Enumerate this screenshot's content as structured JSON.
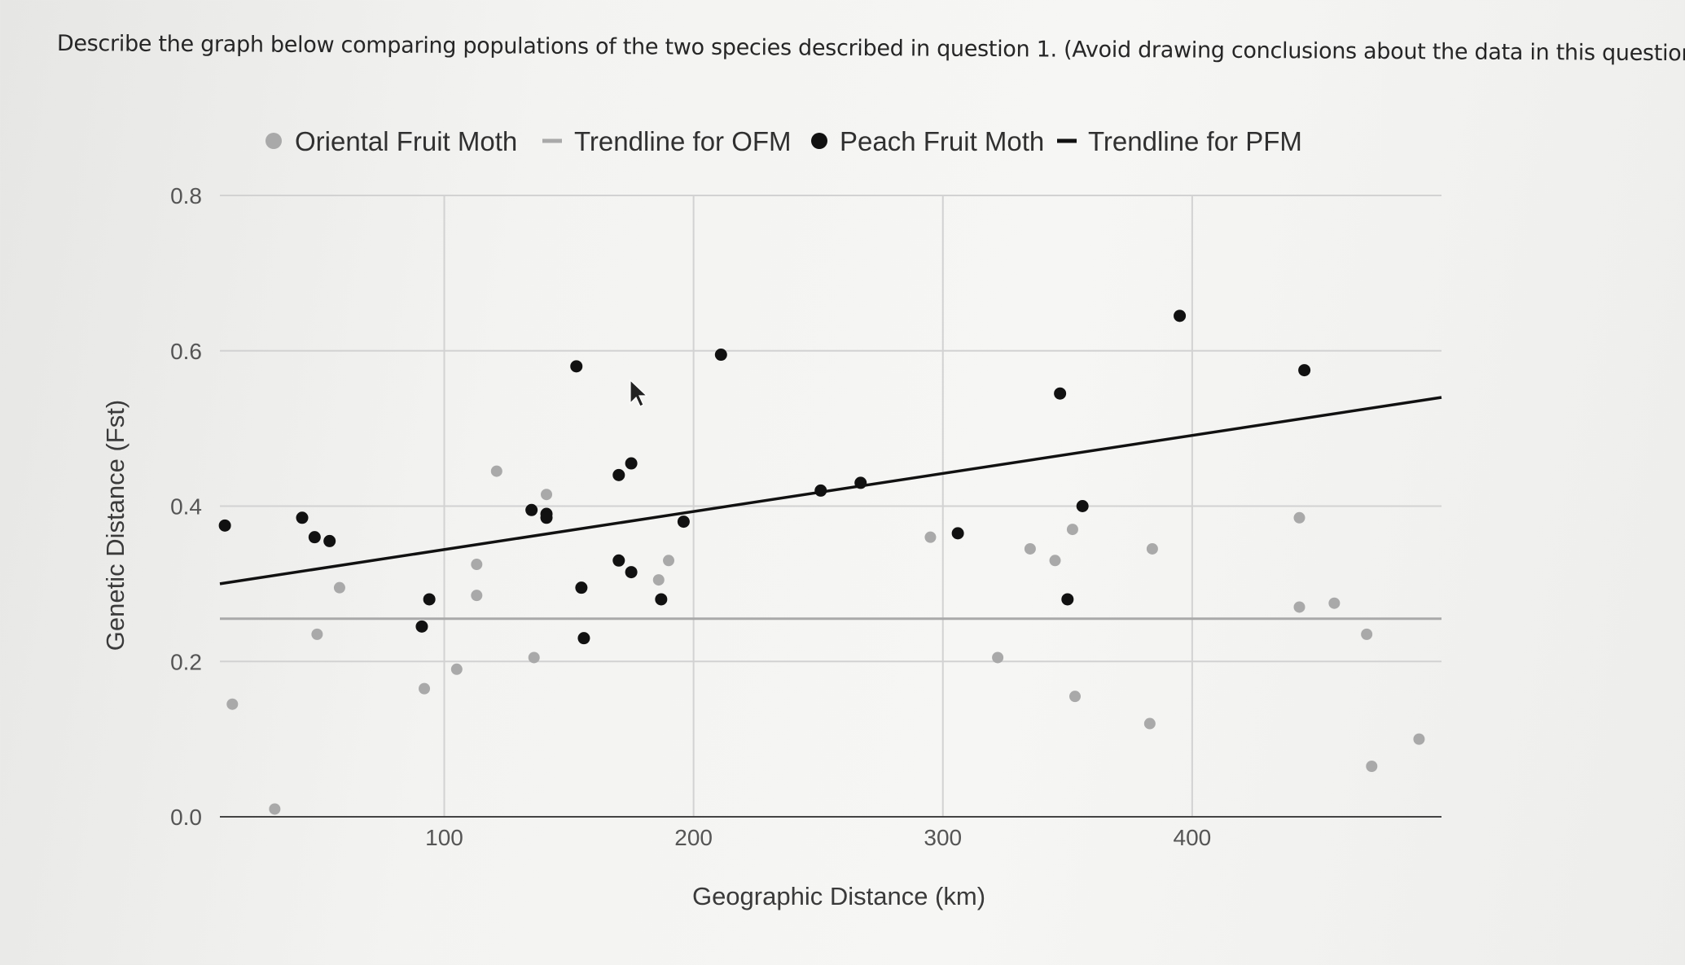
{
  "question": {
    "text": "Describe the graph below comparing populations of the two species described in question 1. (Avoid drawing conclusions about the data in this question)"
  },
  "chart_data": {
    "type": "scatter",
    "title": "",
    "xlabel": "Geographic Distance (km)",
    "ylabel": "Genetic Distance (Fst)",
    "xlim": [
      10,
      500
    ],
    "ylim": [
      0.0,
      0.8
    ],
    "x_ticks": [
      100,
      200,
      300,
      400
    ],
    "y_ticks": [
      0.0,
      0.2,
      0.4,
      0.6,
      0.8
    ],
    "x_tick_labels": [
      "100",
      "200",
      "300",
      "400"
    ],
    "y_tick_labels": [
      "0.0",
      "0.2",
      "0.4",
      "0.6",
      "0.8"
    ],
    "grid": true,
    "legend_position": "top",
    "legend": [
      {
        "label": "Oriental Fruit Moth",
        "marker": "circle",
        "color": "#a9a9a9"
      },
      {
        "label": "Trendline for OFM",
        "marker": "line",
        "color": "#a9a9a9"
      },
      {
        "label": "Peach Fruit Moth",
        "marker": "circle",
        "color": "#111111"
      },
      {
        "label": "Trendline for PFM",
        "marker": "line",
        "color": "#111111"
      }
    ],
    "series": [
      {
        "name": "Oriental Fruit Moth",
        "color": "#a9a9a9",
        "points": [
          [
            15,
            0.145
          ],
          [
            32,
            0.01
          ],
          [
            49,
            0.235
          ],
          [
            58,
            0.295
          ],
          [
            92,
            0.165
          ],
          [
            105,
            0.19
          ],
          [
            113,
            0.285
          ],
          [
            113,
            0.325
          ],
          [
            121,
            0.445
          ],
          [
            136,
            0.205
          ],
          [
            141,
            0.415
          ],
          [
            186,
            0.305
          ],
          [
            190,
            0.33
          ],
          [
            295,
            0.36
          ],
          [
            322,
            0.205
          ],
          [
            335,
            0.345
          ],
          [
            345,
            0.33
          ],
          [
            352,
            0.37
          ],
          [
            353,
            0.155
          ],
          [
            384,
            0.345
          ],
          [
            383,
            0.12
          ],
          [
            443,
            0.385
          ],
          [
            443,
            0.27
          ],
          [
            457,
            0.275
          ],
          [
            470,
            0.235
          ],
          [
            472,
            0.065
          ],
          [
            491,
            0.1
          ]
        ]
      },
      {
        "name": "Peach Fruit Moth",
        "color": "#111111",
        "points": [
          [
            12,
            0.375
          ],
          [
            43,
            0.385
          ],
          [
            48,
            0.36
          ],
          [
            54,
            0.355
          ],
          [
            91,
            0.245
          ],
          [
            94,
            0.28
          ],
          [
            135,
            0.395
          ],
          [
            141,
            0.39
          ],
          [
            141,
            0.385
          ],
          [
            153,
            0.58
          ],
          [
            155,
            0.295
          ],
          [
            156,
            0.23
          ],
          [
            170,
            0.44
          ],
          [
            170,
            0.33
          ],
          [
            175,
            0.455
          ],
          [
            175,
            0.315
          ],
          [
            187,
            0.28
          ],
          [
            196,
            0.38
          ],
          [
            211,
            0.595
          ],
          [
            251,
            0.42
          ],
          [
            267,
            0.43
          ],
          [
            306,
            0.365
          ],
          [
            347,
            0.545
          ],
          [
            350,
            0.28
          ],
          [
            356,
            0.4
          ],
          [
            395,
            0.645
          ],
          [
            445,
            0.575
          ]
        ]
      }
    ],
    "trendlines": [
      {
        "name": "Trendline for OFM",
        "color": "#a9a9a9",
        "x": [
          10,
          500
        ],
        "y": [
          0.255,
          0.255
        ]
      },
      {
        "name": "Trendline for PFM",
        "color": "#111111",
        "x": [
          10,
          500
        ],
        "y": [
          0.3,
          0.54
        ]
      }
    ]
  }
}
